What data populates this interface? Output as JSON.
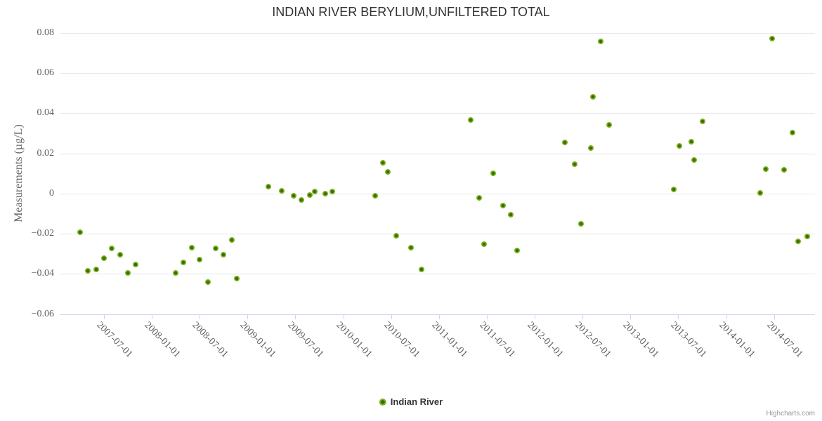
{
  "title": "INDIAN RIVER BERYLIUM,UNFILTERED TOTAL",
  "legend": {
    "label": "Indian River"
  },
  "credit": "Highcharts.com",
  "colors": {
    "grid": "#e6e6e6",
    "axis": "#ccd6eb",
    "title_text": "#333333",
    "label_text": "#606060",
    "credit_text": "#999999",
    "series_outer": "#7ab41e",
    "series_center": "#3d6b0a"
  },
  "chart_data": {
    "type": "scatter",
    "title": "INDIAN RIVER BERYLIUM,UNFILTERED TOTAL",
    "xlabel": "",
    "ylabel": "Measurements (µg/L)",
    "ylim": [
      -0.06,
      0.08
    ],
    "y_ticks": [
      0.08,
      0.06,
      0.04,
      0.02,
      0,
      -0.02,
      -0.04,
      -0.06
    ],
    "y_tick_labels": [
      "0.08",
      "0.06",
      "0.04",
      "0.02",
      "0",
      "−0.02",
      "−0.04",
      "−0.06"
    ],
    "x_ticks": [
      "2007-07-01",
      "2008-01-01",
      "2008-07-01",
      "2009-01-01",
      "2009-07-01",
      "2010-01-01",
      "2010-07-01",
      "2011-01-01",
      "2011-07-01",
      "2012-01-01",
      "2012-07-01",
      "2013-01-01",
      "2013-07-01",
      "2014-01-01",
      "2014-07-01"
    ],
    "x_range": [
      "2007-01-15",
      "2014-12-05"
    ],
    "grid": true,
    "legend_position": "bottom-center",
    "series": [
      {
        "name": "Indian River",
        "color": "#7ab41e",
        "points": [
          [
            "2007-04-01",
            -0.0193
          ],
          [
            "2007-05-01",
            -0.0386
          ],
          [
            "2007-06-01",
            -0.0376
          ],
          [
            "2007-07-01",
            -0.0323
          ],
          [
            "2007-08-01",
            -0.0274
          ],
          [
            "2007-09-01",
            -0.0305
          ],
          [
            "2007-10-01",
            -0.0396
          ],
          [
            "2007-11-01",
            -0.0355
          ],
          [
            "2008-04-01",
            -0.0396
          ],
          [
            "2008-05-01",
            -0.0344
          ],
          [
            "2008-06-01",
            -0.0271
          ],
          [
            "2008-07-01",
            -0.0329
          ],
          [
            "2008-08-01",
            -0.0441
          ],
          [
            "2008-09-01",
            -0.0274
          ],
          [
            "2008-10-01",
            -0.0305
          ],
          [
            "2008-11-01",
            -0.0232
          ],
          [
            "2008-11-20",
            -0.0423
          ],
          [
            "2009-03-20",
            0.0035
          ],
          [
            "2009-05-10",
            0.0015
          ],
          [
            "2009-06-25",
            -0.0012
          ],
          [
            "2009-07-25",
            -0.0033
          ],
          [
            "2009-08-25",
            -0.0007
          ],
          [
            "2009-09-15",
            0.0009
          ],
          [
            "2009-10-25",
            -0.0002
          ],
          [
            "2009-11-20",
            0.0009
          ],
          [
            "2010-05-01",
            -0.0012
          ],
          [
            "2010-06-01",
            0.0154
          ],
          [
            "2010-06-20",
            0.0109
          ],
          [
            "2010-07-20",
            -0.0211
          ],
          [
            "2010-09-15",
            -0.0269
          ],
          [
            "2010-10-25",
            -0.0376
          ],
          [
            "2011-05-01",
            0.0365
          ],
          [
            "2011-06-01",
            -0.0021
          ],
          [
            "2011-06-20",
            -0.0252
          ],
          [
            "2011-07-25",
            0.0102
          ],
          [
            "2011-09-01",
            -0.0059
          ],
          [
            "2011-10-01",
            -0.0105
          ],
          [
            "2011-10-25",
            -0.0283
          ],
          [
            "2012-04-25",
            0.0255
          ],
          [
            "2012-06-01",
            0.0148
          ],
          [
            "2012-06-25",
            -0.0151
          ],
          [
            "2012-08-01",
            0.0226
          ],
          [
            "2012-08-10",
            0.0481
          ],
          [
            "2012-09-10",
            0.0758
          ],
          [
            "2012-10-10",
            0.0341
          ],
          [
            "2013-06-15",
            0.0021
          ],
          [
            "2013-07-05",
            0.0238
          ],
          [
            "2013-08-20",
            0.0259
          ],
          [
            "2013-09-01",
            0.0168
          ],
          [
            "2013-10-01",
            0.0361
          ],
          [
            "2014-05-10",
            0.0004
          ],
          [
            "2014-06-01",
            0.0122
          ],
          [
            "2014-06-25",
            0.0771
          ],
          [
            "2014-08-10",
            0.0119
          ],
          [
            "2014-09-10",
            0.0304
          ],
          [
            "2014-10-01",
            -0.0239
          ],
          [
            "2014-11-05",
            -0.0215
          ]
        ]
      }
    ]
  }
}
